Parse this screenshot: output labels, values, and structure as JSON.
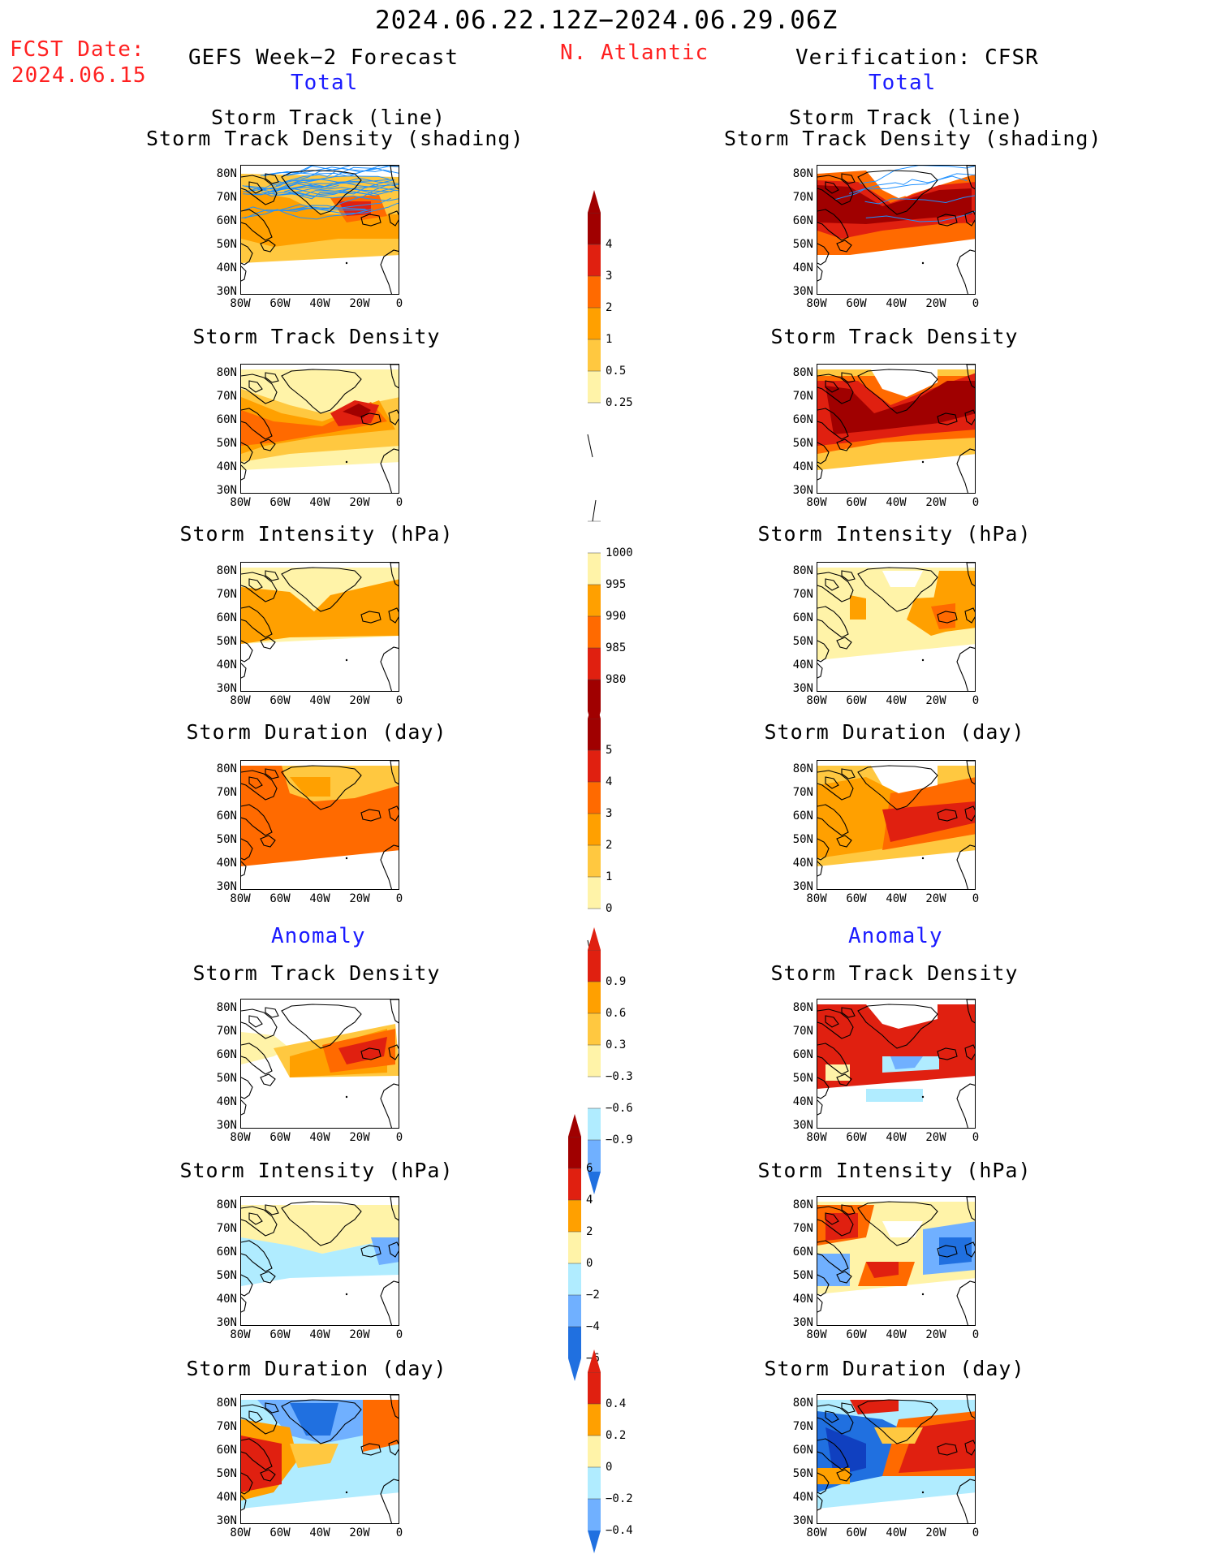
{
  "header": {
    "date_range": "2024.06.22.12Z−2024.06.29.06Z",
    "fcst_label": "FCST Date:",
    "fcst_date": "2024.06.15",
    "left_title": "GEFS Week−2 Forecast",
    "region": "N. Atlantic",
    "right_title": "Verification: CFSR",
    "left_total": "Total",
    "right_total": "Total",
    "left_anomaly": "Anomaly",
    "right_anomaly": "Anomaly"
  },
  "panels": {
    "track_line": "Storm Track (line)",
    "track_density_shading": "Storm Track Density (shading)",
    "track_density": "Storm Track Density",
    "intensity": "Storm Intensity (hPa)",
    "duration": "Storm Duration (day)"
  },
  "axes": {
    "lat": [
      "80N",
      "70N",
      "60N",
      "50N",
      "40N",
      "30N"
    ],
    "lon": [
      "80W",
      "60W",
      "40W",
      "20W",
      "0"
    ]
  },
  "colorbars": {
    "density": [
      "4",
      "3",
      "2",
      "1",
      "0.5",
      "0.25"
    ],
    "intensity": [
      "1000",
      "995",
      "990",
      "985",
      "980"
    ],
    "duration": [
      "5",
      "4",
      "3",
      "2",
      "1",
      "0"
    ],
    "density_anom": [
      "0.9",
      "0.6",
      "0.3",
      "−0.3",
      "−0.6",
      "−0.9"
    ],
    "intensity_anom": [
      "6",
      "4",
      "2",
      "0",
      "−2",
      "−4",
      "−6"
    ],
    "duration_anom": [
      "0.4",
      "0.2",
      "0",
      "−0.2",
      "−0.4"
    ]
  },
  "colors": {
    "pale_yellow": "#fff3a8",
    "light_orange": "#ffc840",
    "orange": "#ffa000",
    "dark_orange": "#ff6a00",
    "red": "#e02010",
    "dark_red": "#a00000",
    "light_blue": "#b0ecff",
    "mid_blue": "#70b0ff",
    "blue": "#2070e0",
    "dark_blue": "#1040c0",
    "track_line": "#1e90ff"
  }
}
